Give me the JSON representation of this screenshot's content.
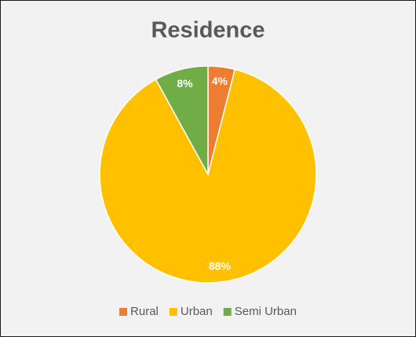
{
  "chart_data": {
    "type": "pie",
    "title": "Residence",
    "categories": [
      "Rural",
      "Urban",
      "Semi Urban"
    ],
    "values": [
      4,
      88,
      8
    ],
    "value_labels": [
      "4%",
      "88%",
      "8%"
    ],
    "colors": [
      "#ED7D31",
      "#FFC000",
      "#70AD47"
    ],
    "legend": "bottom"
  }
}
